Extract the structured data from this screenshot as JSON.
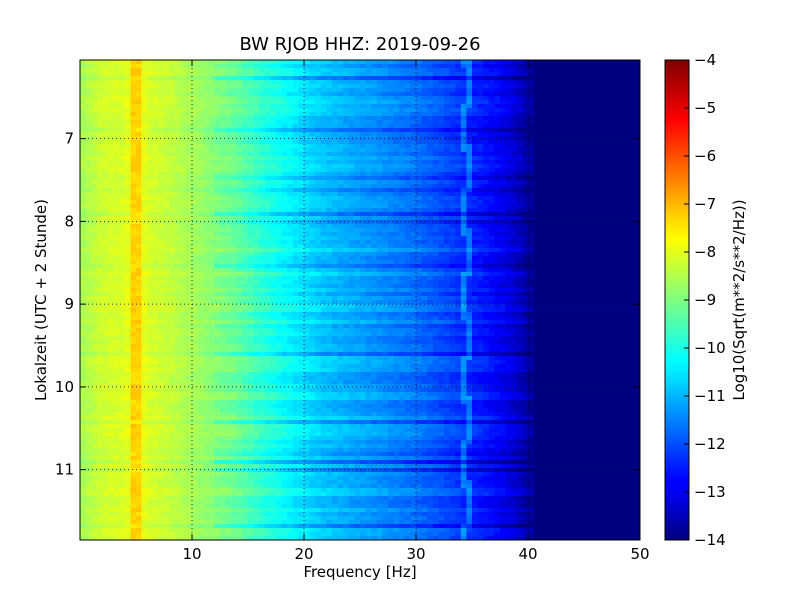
{
  "chart_data": {
    "type": "heatmap",
    "title": "BW RJOB HHZ: 2019-09-26",
    "xlabel": "Frequency [Hz]",
    "ylabel": "Lokalzeit (UTC + 2 Stunde)",
    "xlim": [
      0,
      50
    ],
    "ylim": [
      11.85,
      6.05
    ],
    "x_ticks": [
      10,
      20,
      30,
      40,
      50
    ],
    "y_ticks": [
      7,
      8,
      9,
      10,
      11
    ],
    "grid": true,
    "colormap": "jet",
    "colorbar": {
      "label": "Log10(Sqrt(m**2/s**2/Hz))",
      "range": [
        -14,
        -4
      ],
      "ticks": [
        -4,
        -5,
        -6,
        -7,
        -8,
        -9,
        -10,
        -11,
        -12,
        -13,
        -14
      ]
    },
    "spectral_profile": {
      "frequency_hz": [
        0,
        2,
        4,
        5,
        6,
        8,
        10,
        12,
        14,
        16,
        18,
        20,
        22,
        25,
        28,
        30,
        32,
        34,
        36,
        38,
        39,
        40,
        41,
        42,
        45,
        50
      ],
      "log10_psd": [
        -8.6,
        -8.2,
        -8.1,
        -7.7,
        -8.1,
        -8.3,
        -8.6,
        -8.9,
        -9.2,
        -9.7,
        -10.1,
        -10.5,
        -10.8,
        -11.1,
        -11.4,
        -11.6,
        -11.9,
        -12.2,
        -12.5,
        -12.9,
        -13.2,
        -13.6,
        -14,
        -14,
        -14,
        -14
      ]
    },
    "features": [
      {
        "frequency_hz": 5,
        "kind": "narrow line"
      },
      {
        "frequency_hz": 34.5,
        "kind": "wandering line"
      }
    ]
  }
}
